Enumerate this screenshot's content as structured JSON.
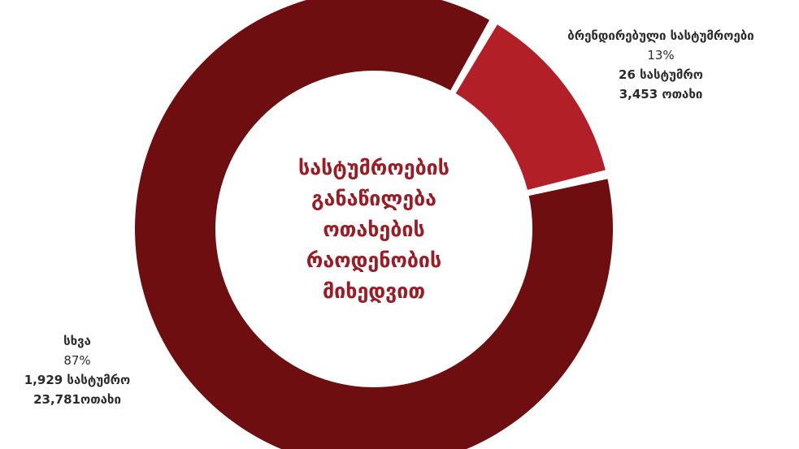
{
  "chart_data": {
    "type": "pie",
    "title_lines": [
      "სასტუმროების",
      "განაწილება",
      "ოთახების",
      "რაოდენობის",
      "მიხედვით"
    ],
    "slices": [
      {
        "name": "ბრენდირებული სასტუმროები",
        "percent_label": "13%",
        "value": 13,
        "hotels_label": "26 სასტუმრო",
        "rooms_label": "3,453 ოთახი",
        "color": "#b31f27"
      },
      {
        "name": "სხვა",
        "percent_label": "87%",
        "value": 87,
        "hotels_label": "1,929 სასტუმრო",
        "rooms_label": "23,781ოთახი",
        "color": "#6e0e10"
      }
    ],
    "donut": true
  }
}
